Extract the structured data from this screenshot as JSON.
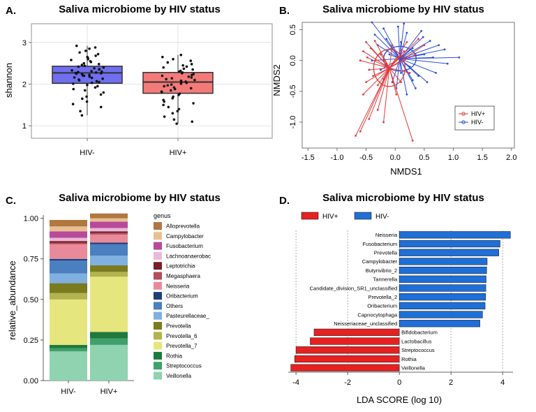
{
  "panels": {
    "A": {
      "letter": "A.",
      "title": "Saliva microbiome by HIV status"
    },
    "B": {
      "letter": "B.",
      "title": "Saliva microbiome by HIV status"
    },
    "C": {
      "letter": "C.",
      "title": "Saliva microbiome by HIV status"
    },
    "D": {
      "letter": "D.",
      "title": "Saliva microbiome by HIV status"
    }
  },
  "chart_data": [
    {
      "type": "box",
      "panel": "A",
      "title": "Saliva microbiome by HIV status",
      "ylabel": "shannon",
      "xlabel": "",
      "ylim": [
        0.7,
        3.45
      ],
      "yticks": [
        1,
        2,
        3
      ],
      "categories": [
        "HIV-",
        "HIV+"
      ],
      "annotation": "***",
      "colors": [
        "#6f6ff0",
        "#f47a7a"
      ],
      "boxes": [
        {
          "category": "HIV-",
          "q1": 2.02,
          "median": 2.27,
          "q3": 2.43,
          "whisker_low": 1.25,
          "whisker_high": 2.92
        },
        {
          "category": "HIV+",
          "q1": 1.78,
          "median": 2.05,
          "q3": 2.28,
          "whisker_low": 1.05,
          "whisker_high": 2.7
        }
      ],
      "points": {
        "HIV-": [
          2.92,
          2.88,
          2.85,
          2.8,
          2.76,
          2.72,
          2.68,
          2.65,
          2.62,
          2.6,
          2.58,
          2.55,
          2.53,
          2.5,
          2.48,
          2.46,
          2.44,
          2.42,
          2.4,
          2.38,
          2.36,
          2.35,
          2.33,
          2.31,
          2.3,
          2.29,
          2.28,
          2.27,
          2.26,
          2.25,
          2.24,
          2.22,
          2.21,
          2.2,
          2.18,
          2.16,
          2.15,
          2.13,
          2.11,
          2.09,
          2.07,
          2.05,
          2.03,
          2.01,
          1.98,
          1.95,
          1.92,
          1.88,
          1.85,
          1.8,
          1.75,
          1.7,
          1.65,
          1.58,
          1.52,
          1.45,
          1.35,
          1.25
        ],
        "HIV+": [
          2.7,
          2.65,
          2.6,
          2.56,
          2.52,
          2.48,
          2.45,
          2.42,
          2.4,
          2.37,
          2.35,
          2.32,
          2.3,
          2.28,
          2.26,
          2.24,
          2.22,
          2.2,
          2.18,
          2.16,
          2.14,
          2.12,
          2.1,
          2.08,
          2.06,
          2.05,
          2.03,
          2.01,
          1.99,
          1.97,
          1.95,
          1.92,
          1.9,
          1.88,
          1.85,
          1.82,
          1.8,
          1.77,
          1.74,
          1.7,
          1.66,
          1.62,
          1.58,
          1.54,
          1.5,
          1.45,
          1.4,
          1.35,
          1.3,
          1.22,
          1.15,
          1.1,
          1.05
        ]
      }
    },
    {
      "type": "scatter",
      "panel": "B",
      "title": "Saliva microbiome by HIV status",
      "xlabel": "NMDS1",
      "ylabel": "NMDS2",
      "xlim": [
        -1.6,
        2.05
      ],
      "ylim": [
        -1.42,
        0.62
      ],
      "xticks": [
        -1.5,
        -1.0,
        -0.5,
        0.0,
        0.5,
        1.0,
        1.5,
        2.0
      ],
      "yticks": [
        -1.0,
        -0.5,
        0.0,
        0.5
      ],
      "xtick_labels": [
        "-1.5",
        "-1.0",
        "-0.5",
        "0.0",
        "0.5",
        "1.0",
        "1.5",
        "2.0"
      ],
      "ytick_labels": [
        "-1.0",
        "-0.5",
        "0.0",
        "0.5"
      ],
      "legend": {
        "position": "bottom-right",
        "entries": [
          "HIV+",
          "HIV-"
        ]
      },
      "series": [
        {
          "name": "HIV+",
          "color": "#e03a3a",
          "centroid": [
            -0.1,
            -0.12
          ],
          "ellipse_radius": [
            0.27,
            0.3
          ],
          "points": [
            [
              -0.68,
              -1.22
            ],
            [
              -0.6,
              -1.15
            ],
            [
              -0.45,
              -0.95
            ],
            [
              -0.3,
              -0.8
            ],
            [
              -0.2,
              -1.0
            ],
            [
              0.3,
              -1.3
            ],
            [
              -0.55,
              -0.55
            ],
            [
              -0.5,
              -0.35
            ],
            [
              -0.45,
              -0.15
            ],
            [
              -0.48,
              0.05
            ],
            [
              -0.42,
              0.2
            ],
            [
              -0.35,
              0.32
            ],
            [
              -0.5,
              0.3
            ],
            [
              -0.25,
              0.1
            ],
            [
              -0.15,
              -0.05
            ],
            [
              0.05,
              0.05
            ],
            [
              0.15,
              0.15
            ],
            [
              0.25,
              -0.2
            ],
            [
              0.35,
              0.1
            ],
            [
              0.5,
              0.25
            ],
            [
              0.4,
              0.35
            ],
            [
              -0.3,
              -0.4
            ],
            [
              -0.2,
              -0.3
            ],
            [
              0.1,
              -0.35
            ],
            [
              -0.05,
              0.25
            ],
            [
              -0.55,
              0.15
            ],
            [
              -0.38,
              -0.25
            ],
            [
              0.02,
              -0.55
            ],
            [
              0.2,
              0.3
            ],
            [
              -0.6,
              0.0
            ]
          ]
        },
        {
          "name": "HIV-",
          "color": "#2a4dd8",
          "centroid": [
            0.08,
            0.03
          ],
          "ellipse_radius": [
            0.28,
            0.2
          ],
          "points": [
            [
              -0.4,
              0.62
            ],
            [
              -0.2,
              0.52
            ],
            [
              0.05,
              0.55
            ],
            [
              0.2,
              0.45
            ],
            [
              0.45,
              0.48
            ],
            [
              0.6,
              0.32
            ],
            [
              0.85,
              0.18
            ],
            [
              1.1,
              0.05
            ],
            [
              0.9,
              -0.05
            ],
            [
              0.7,
              -0.2
            ],
            [
              0.55,
              -0.35
            ],
            [
              0.35,
              -0.45
            ],
            [
              0.2,
              -0.55
            ],
            [
              -0.05,
              -0.35
            ],
            [
              -0.25,
              -0.15
            ],
            [
              -0.4,
              0.0
            ],
            [
              -0.3,
              0.25
            ],
            [
              -0.15,
              0.35
            ],
            [
              0.1,
              0.3
            ],
            [
              0.3,
              0.2
            ],
            [
              0.5,
              0.1
            ],
            [
              0.25,
              -0.1
            ],
            [
              0.1,
              -0.2
            ],
            [
              -0.1,
              0.1
            ],
            [
              0.4,
              -0.25
            ],
            [
              0.65,
              0.05
            ],
            [
              0.75,
              0.25
            ],
            [
              -0.35,
              0.42
            ],
            [
              0.15,
              0.6
            ],
            [
              0.02,
              -0.45
            ],
            [
              0.48,
              0.38
            ],
            [
              0.3,
              -0.32
            ]
          ]
        }
      ]
    },
    {
      "type": "stacked_bar",
      "panel": "C",
      "title": "Saliva microbiome by HIV status",
      "ylabel": "relative_abundance",
      "xlabel": "",
      "ylim": [
        0,
        1.02
      ],
      "yticks": [
        0.0,
        0.25,
        0.5,
        0.75,
        1.0
      ],
      "ytick_labels": [
        "0.00",
        "0.25",
        "0.50",
        "0.75",
        "1.00"
      ],
      "categories": [
        "HIV-",
        "HIV+"
      ],
      "legend_title": "genus",
      "series": [
        {
          "name": "Veillonella",
          "color": "#8fd3b0",
          "values": [
            0.18,
            0.22
          ]
        },
        {
          "name": "Streptococcus",
          "color": "#3fa06a",
          "values": [
            0.02,
            0.04
          ]
        },
        {
          "name": "Rothia",
          "color": "#1f7a3c",
          "values": [
            0.02,
            0.04
          ]
        },
        {
          "name": "Prevotella_7",
          "color": "#e6e67e",
          "values": [
            0.28,
            0.34
          ]
        },
        {
          "name": "Prevotella_6",
          "color": "#b3b34f",
          "values": [
            0.04,
            0.03
          ]
        },
        {
          "name": "Prevotella",
          "color": "#7a7a1e",
          "values": [
            0.06,
            0.04
          ]
        },
        {
          "name": "Pasteurellaceae_",
          "color": "#7fb0e0",
          "values": [
            0.06,
            0.06
          ]
        },
        {
          "name": "Others",
          "color": "#4a7fc0",
          "values": [
            0.08,
            0.07
          ]
        },
        {
          "name": "Oribacterium",
          "color": "#1e3f78",
          "values": [
            0.01,
            0.01
          ]
        },
        {
          "name": "Neisseria",
          "color": "#e98a9a",
          "values": [
            0.09,
            0.05
          ]
        },
        {
          "name": "Megasphaera",
          "color": "#b0505a",
          "values": [
            0.01,
            0.01
          ]
        },
        {
          "name": "Leptotrichia",
          "color": "#7a1e2a",
          "values": [
            0.01,
            0.01
          ]
        },
        {
          "name": "Lachnoanaerobac",
          "color": "#e8b9d8",
          "values": [
            0.02,
            0.02
          ]
        },
        {
          "name": "Fusobacterium",
          "color": "#b84a9a",
          "values": [
            0.04,
            0.04
          ]
        },
        {
          "name": "Campylobacter",
          "color": "#e8c090",
          "values": [
            0.03,
            0.02
          ]
        },
        {
          "name": "Alloprevotella",
          "color": "#b07840",
          "values": [
            0.04,
            0.03
          ]
        }
      ]
    },
    {
      "type": "bar",
      "orientation": "horizontal",
      "panel": "D",
      "title": "Saliva microbiome by HIV status",
      "xlabel": "LDA SCORE (log 10)",
      "ylabel": "",
      "xlim": [
        -4.3,
        4.4
      ],
      "xticks": [
        -4,
        -2,
        0,
        2,
        4
      ],
      "legend": {
        "position": "top",
        "entries": [
          {
            "name": "HIV+",
            "color": "#e82020"
          },
          {
            "name": "HIV-",
            "color": "#1f6fd8"
          }
        ]
      },
      "bars": [
        {
          "label": "Neisseria",
          "value": 4.3,
          "group": "HIV-"
        },
        {
          "label": "Fusobacterium",
          "value": 3.9,
          "group": "HIV-"
        },
        {
          "label": "Prevotella",
          "value": 3.85,
          "group": "HIV-"
        },
        {
          "label": "Campylobacter",
          "value": 3.4,
          "group": "HIV-"
        },
        {
          "label": "Butyrivibrio_2",
          "value": 3.38,
          "group": "HIV-"
        },
        {
          "label": "Tannerella",
          "value": 3.36,
          "group": "HIV-"
        },
        {
          "label": "Candidate_division_SR1_unclassified",
          "value": 3.35,
          "group": "HIV-"
        },
        {
          "label": "Prevotella_2",
          "value": 3.34,
          "group": "HIV-"
        },
        {
          "label": "Oribacterium",
          "value": 3.32,
          "group": "HIV-"
        },
        {
          "label": "Capnocytophaga",
          "value": 3.22,
          "group": "HIV-"
        },
        {
          "label": "Neisseriaceae_unclassified",
          "value": 3.12,
          "group": "HIV-"
        },
        {
          "label": "Bifidobacterium",
          "value": -3.3,
          "group": "HIV+"
        },
        {
          "label": "Lactobacillus",
          "value": -3.45,
          "group": "HIV+"
        },
        {
          "label": "Streptococcus",
          "value": -4.0,
          "group": "HIV+"
        },
        {
          "label": "Rothia",
          "value": -4.05,
          "group": "HIV+"
        },
        {
          "label": "Veillonella",
          "value": -4.2,
          "group": "HIV+"
        }
      ]
    }
  ]
}
